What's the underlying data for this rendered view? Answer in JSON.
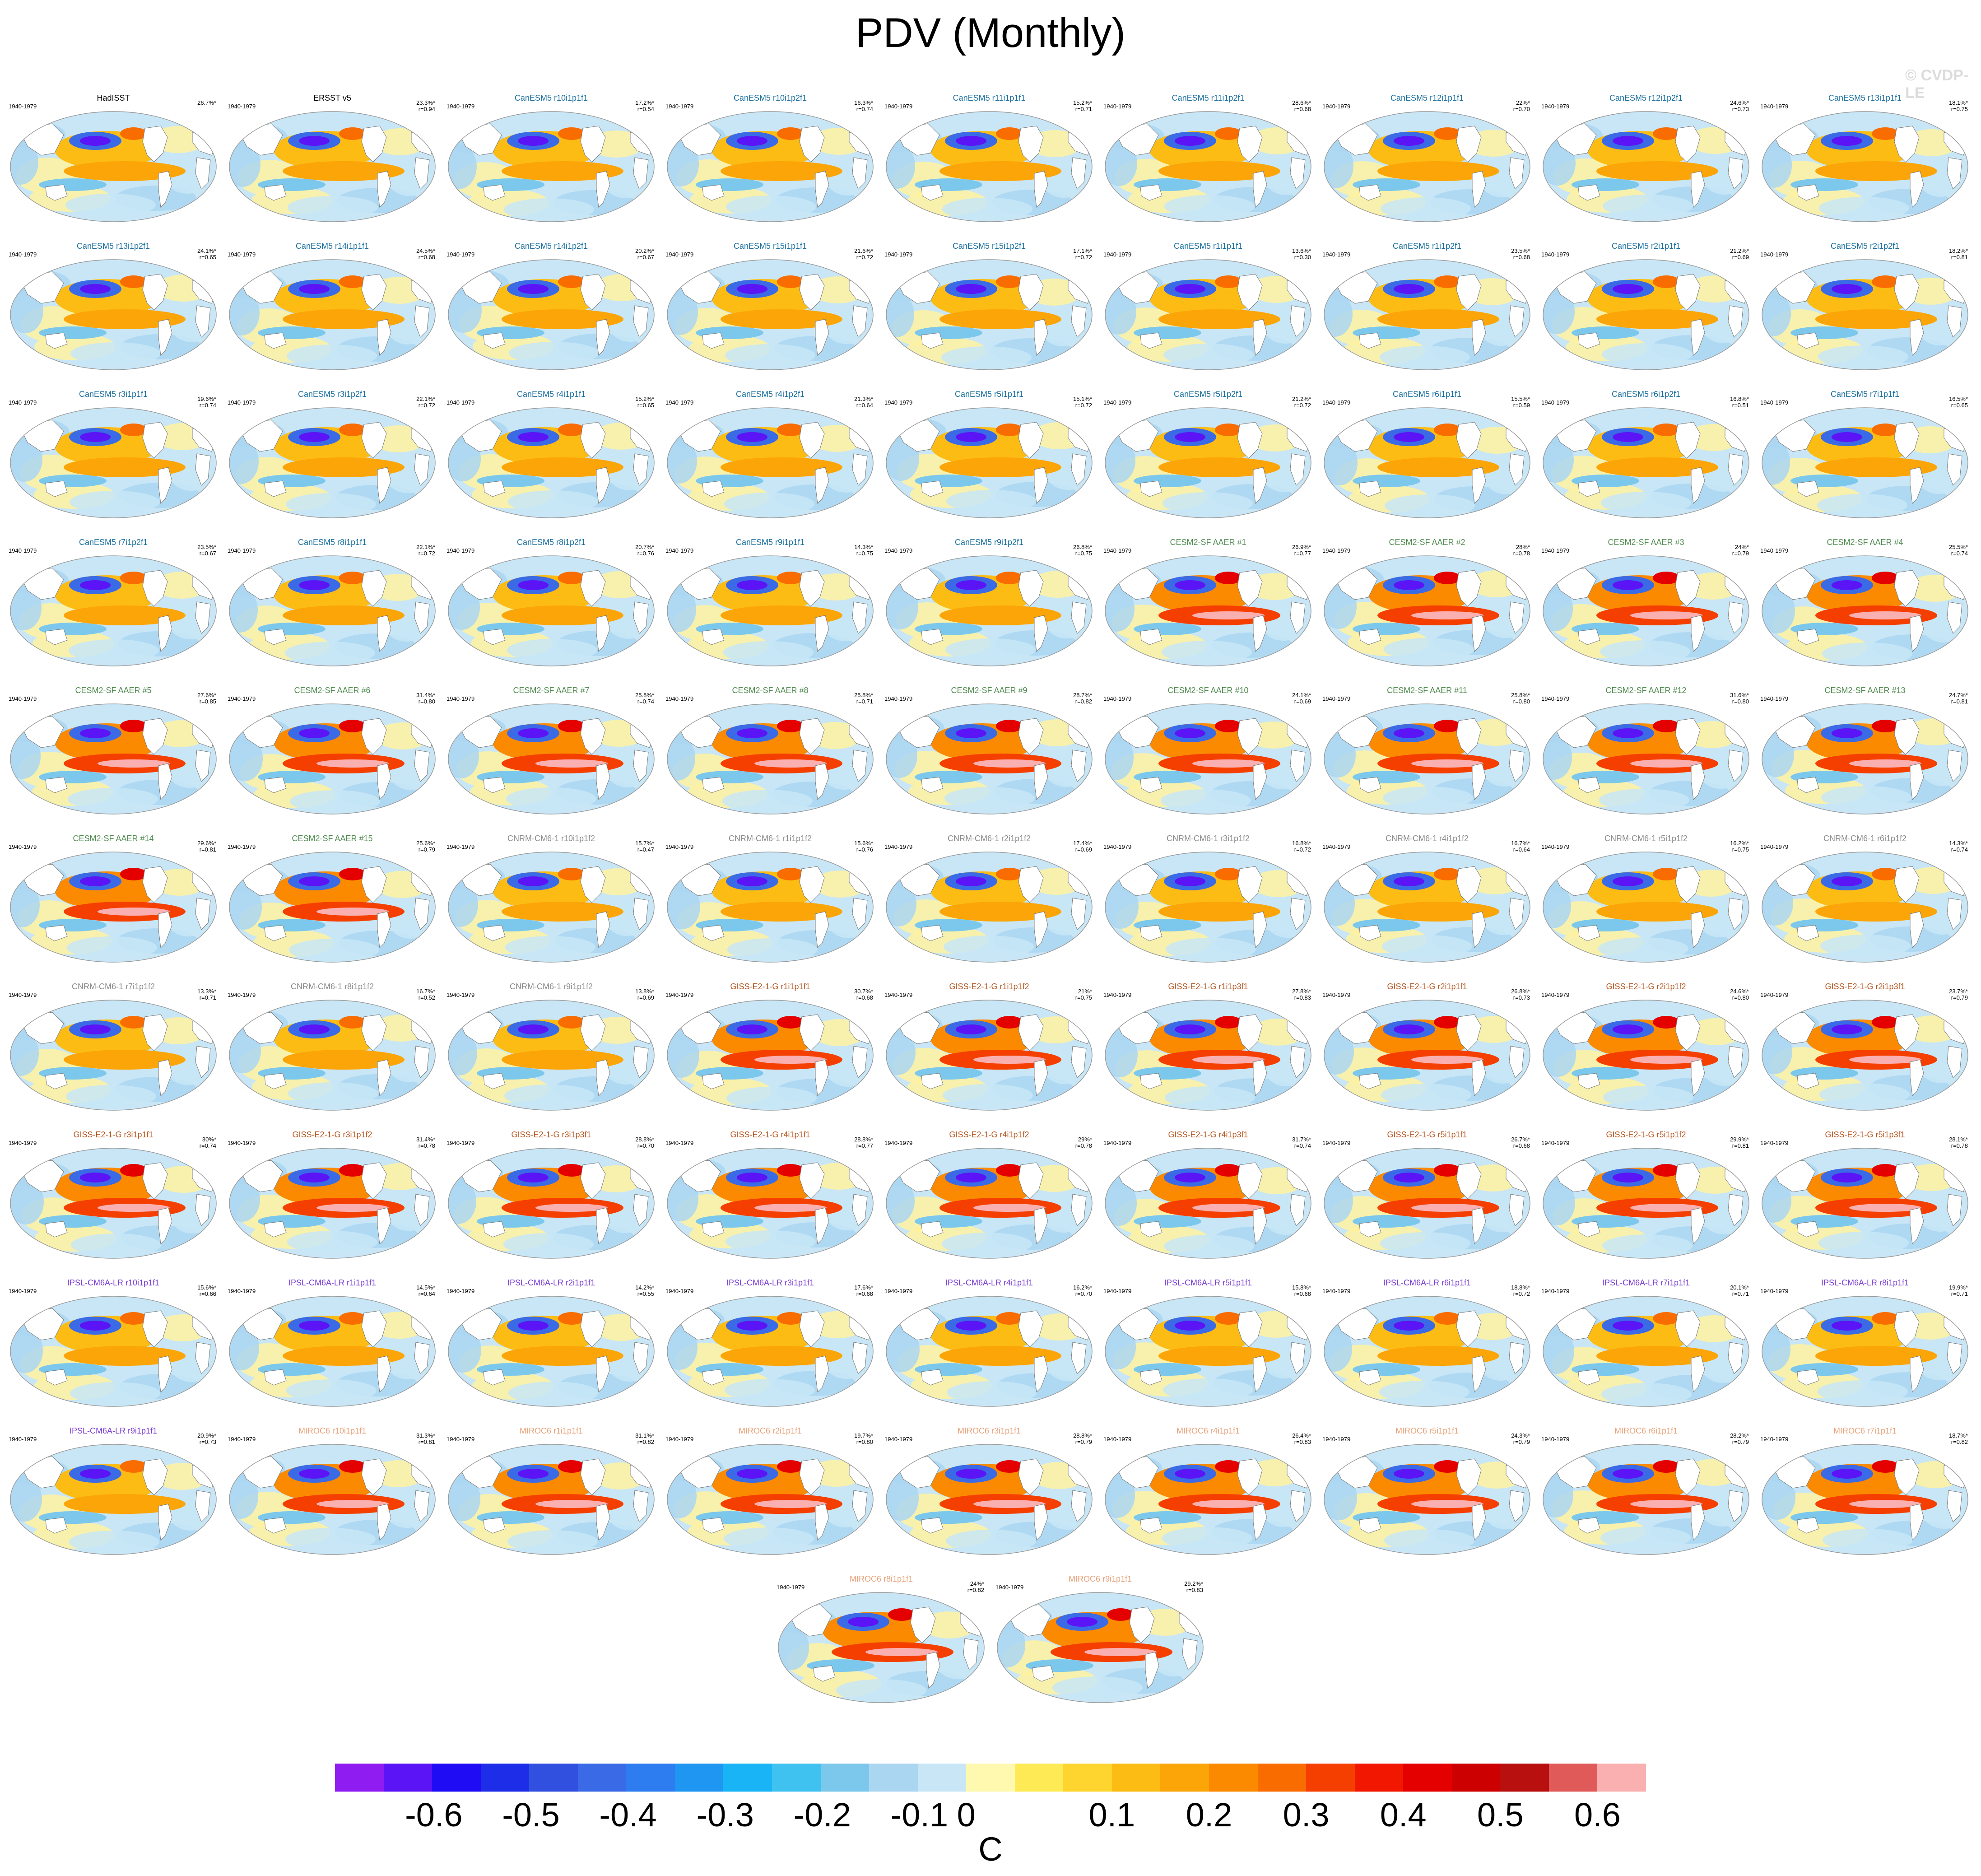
{
  "title": "PDV (Monthly)",
  "watermark": "© CVDP-LE",
  "period": "1940-1979",
  "units": "C",
  "colorbar": {
    "labels": [
      "-0.6",
      "-0.5",
      "-0.4",
      "-0.3",
      "-0.2",
      "-0.1",
      "0",
      "0.1",
      "0.2",
      "0.3",
      "0.4",
      "0.5",
      "0.6"
    ],
    "colors": [
      "#8f1cf0",
      "#5b14f5",
      "#1f0cf5",
      "#1e2ee8",
      "#3150e0",
      "#3a6ae6",
      "#2d7cf0",
      "#1e96f2",
      "#18b4f5",
      "#40c2f0",
      "#7cc8ec",
      "#aad6f2",
      "#c8e6f6",
      "#fff9b0",
      "#fdea55",
      "#fdd52e",
      "#fcbc14",
      "#fca508",
      "#fc8a00",
      "#f96c00",
      "#f53f00",
      "#f21700",
      "#e50000",
      "#cc0000",
      "#b80f0f",
      "#e05a5a",
      "#fab0b0"
    ]
  },
  "group_colors": {
    "obs": "#000000",
    "CanESM5": "#1a6f9e",
    "CESM2-SF AAER": "#4f8a4f",
    "CNRM-CM6-1": "#8a8a8a",
    "GISS-E2-1-G": "#b3541e",
    "IPSL-CM6A-LR": "#7b3fd4",
    "MIROC6": "#e8a27a"
  },
  "panels": [
    {
      "title": "HadISST",
      "group": "obs",
      "pct": "26.7%*",
      "r": ""
    },
    {
      "title": "ERSST v5",
      "group": "obs",
      "pct": "23.3%*",
      "r": "r=0.94"
    },
    {
      "title": "CanESM5 r10i1p1f1",
      "group": "CanESM5",
      "pct": "17.2%*",
      "r": "r=0.54"
    },
    {
      "title": "CanESM5 r10i1p2f1",
      "group": "CanESM5",
      "pct": "16.3%*",
      "r": "r=0.74"
    },
    {
      "title": "CanESM5 r11i1p1f1",
      "group": "CanESM5",
      "pct": "15.2%*",
      "r": "r=0.71"
    },
    {
      "title": "CanESM5 r11i1p2f1",
      "group": "CanESM5",
      "pct": "28.6%*",
      "r": "r=0.68"
    },
    {
      "title": "CanESM5 r12i1p1f1",
      "group": "CanESM5",
      "pct": "22%*",
      "r": "r=0.70"
    },
    {
      "title": "CanESM5 r12i1p2f1",
      "group": "CanESM5",
      "pct": "24.6%*",
      "r": "r=0.73"
    },
    {
      "title": "CanESM5 r13i1p1f1",
      "group": "CanESM5",
      "pct": "18.1%*",
      "r": "r=0.75"
    },
    {
      "title": "CanESM5 r13i1p2f1",
      "group": "CanESM5",
      "pct": "24.1%*",
      "r": "r=0.65"
    },
    {
      "title": "CanESM5 r14i1p1f1",
      "group": "CanESM5",
      "pct": "24.5%*",
      "r": "r=0.68"
    },
    {
      "title": "CanESM5 r14i1p2f1",
      "group": "CanESM5",
      "pct": "20.2%*",
      "r": "r=0.67"
    },
    {
      "title": "CanESM5 r15i1p1f1",
      "group": "CanESM5",
      "pct": "21.6%*",
      "r": "r=0.72"
    },
    {
      "title": "CanESM5 r15i1p2f1",
      "group": "CanESM5",
      "pct": "17.1%*",
      "r": "r=0.72"
    },
    {
      "title": "CanESM5 r1i1p1f1",
      "group": "CanESM5",
      "pct": "13.6%*",
      "r": "r=0.30"
    },
    {
      "title": "CanESM5 r1i1p2f1",
      "group": "CanESM5",
      "pct": "23.5%*",
      "r": "r=0.68"
    },
    {
      "title": "CanESM5 r2i1p1f1",
      "group": "CanESM5",
      "pct": "21.2%*",
      "r": "r=0.69"
    },
    {
      "title": "CanESM5 r2i1p2f1",
      "group": "CanESM5",
      "pct": "18.2%*",
      "r": "r=0.81"
    },
    {
      "title": "CanESM5 r3i1p1f1",
      "group": "CanESM5",
      "pct": "19.6%*",
      "r": "r=0.74"
    },
    {
      "title": "CanESM5 r3i1p2f1",
      "group": "CanESM5",
      "pct": "22.1%*",
      "r": "r=0.72"
    },
    {
      "title": "CanESM5 r4i1p1f1",
      "group": "CanESM5",
      "pct": "15.2%*",
      "r": "r=0.65"
    },
    {
      "title": "CanESM5 r4i1p2f1",
      "group": "CanESM5",
      "pct": "21.3%*",
      "r": "r=0.64"
    },
    {
      "title": "CanESM5 r5i1p1f1",
      "group": "CanESM5",
      "pct": "15.1%*",
      "r": "r=0.72"
    },
    {
      "title": "CanESM5 r5i1p2f1",
      "group": "CanESM5",
      "pct": "21.2%*",
      "r": "r=0.72"
    },
    {
      "title": "CanESM5 r6i1p1f1",
      "group": "CanESM5",
      "pct": "15.5%*",
      "r": "r=0.59"
    },
    {
      "title": "CanESM5 r6i1p2f1",
      "group": "CanESM5",
      "pct": "16.8%*",
      "r": "r=0.51"
    },
    {
      "title": "CanESM5 r7i1p1f1",
      "group": "CanESM5",
      "pct": "16.5%*",
      "r": "r=0.65"
    },
    {
      "title": "CanESM5 r7i1p2f1",
      "group": "CanESM5",
      "pct": "23.5%*",
      "r": "r=0.67"
    },
    {
      "title": "CanESM5 r8i1p1f1",
      "group": "CanESM5",
      "pct": "22.1%*",
      "r": "r=0.72"
    },
    {
      "title": "CanESM5 r8i1p2f1",
      "group": "CanESM5",
      "pct": "20.7%*",
      "r": "r=0.76"
    },
    {
      "title": "CanESM5 r9i1p1f1",
      "group": "CanESM5",
      "pct": "14.3%*",
      "r": "r=0.75"
    },
    {
      "title": "CanESM5 r9i1p2f1",
      "group": "CanESM5",
      "pct": "26.8%*",
      "r": "r=0.75"
    },
    {
      "title": "CESM2-SF AAER #1",
      "group": "CESM2-SF AAER",
      "pct": "26.9%*",
      "r": "r=0.77"
    },
    {
      "title": "CESM2-SF AAER #2",
      "group": "CESM2-SF AAER",
      "pct": "28%*",
      "r": "r=0.78"
    },
    {
      "title": "CESM2-SF AAER #3",
      "group": "CESM2-SF AAER",
      "pct": "24%*",
      "r": "r=0.79"
    },
    {
      "title": "CESM2-SF AAER #4",
      "group": "CESM2-SF AAER",
      "pct": "25.5%*",
      "r": "r=0.74"
    },
    {
      "title": "CESM2-SF AAER #5",
      "group": "CESM2-SF AAER",
      "pct": "27.6%*",
      "r": "r=0.85"
    },
    {
      "title": "CESM2-SF AAER #6",
      "group": "CESM2-SF AAER",
      "pct": "31.4%*",
      "r": "r=0.80"
    },
    {
      "title": "CESM2-SF AAER #7",
      "group": "CESM2-SF AAER",
      "pct": "25.8%*",
      "r": "r=0.74"
    },
    {
      "title": "CESM2-SF AAER #8",
      "group": "CESM2-SF AAER",
      "pct": "25.8%*",
      "r": "r=0.71"
    },
    {
      "title": "CESM2-SF AAER #9",
      "group": "CESM2-SF AAER",
      "pct": "28.7%*",
      "r": "r=0.82"
    },
    {
      "title": "CESM2-SF AAER #10",
      "group": "CESM2-SF AAER",
      "pct": "24.1%*",
      "r": "r=0.69"
    },
    {
      "title": "CESM2-SF AAER #11",
      "group": "CESM2-SF AAER",
      "pct": "25.8%*",
      "r": "r=0.80"
    },
    {
      "title": "CESM2-SF AAER #12",
      "group": "CESM2-SF AAER",
      "pct": "31.6%*",
      "r": "r=0.80"
    },
    {
      "title": "CESM2-SF AAER #13",
      "group": "CESM2-SF AAER",
      "pct": "24.7%*",
      "r": "r=0.81"
    },
    {
      "title": "CESM2-SF AAER #14",
      "group": "CESM2-SF AAER",
      "pct": "29.6%*",
      "r": "r=0.81"
    },
    {
      "title": "CESM2-SF AAER #15",
      "group": "CESM2-SF AAER",
      "pct": "25.6%*",
      "r": "r=0.79"
    },
    {
      "title": "CNRM-CM6-1 r10i1p1f2",
      "group": "CNRM-CM6-1",
      "pct": "15.7%*",
      "r": "r=0.47"
    },
    {
      "title": "CNRM-CM6-1 r1i1p1f2",
      "group": "CNRM-CM6-1",
      "pct": "15.6%*",
      "r": "r=0.76"
    },
    {
      "title": "CNRM-CM6-1 r2i1p1f2",
      "group": "CNRM-CM6-1",
      "pct": "17.4%*",
      "r": "r=0.69"
    },
    {
      "title": "CNRM-CM6-1 r3i1p1f2",
      "group": "CNRM-CM6-1",
      "pct": "16.8%*",
      "r": "r=0.72"
    },
    {
      "title": "CNRM-CM6-1 r4i1p1f2",
      "group": "CNRM-CM6-1",
      "pct": "16.7%*",
      "r": "r=0.64"
    },
    {
      "title": "CNRM-CM6-1 r5i1p1f2",
      "group": "CNRM-CM6-1",
      "pct": "16.2%*",
      "r": "r=0.75"
    },
    {
      "title": "CNRM-CM6-1 r6i1p1f2",
      "group": "CNRM-CM6-1",
      "pct": "14.3%*",
      "r": "r=0.74"
    },
    {
      "title": "CNRM-CM6-1 r7i1p1f2",
      "group": "CNRM-CM6-1",
      "pct": "13.3%*",
      "r": "r=0.71"
    },
    {
      "title": "CNRM-CM6-1 r8i1p1f2",
      "group": "CNRM-CM6-1",
      "pct": "16.7%*",
      "r": "r=0.52"
    },
    {
      "title": "CNRM-CM6-1 r9i1p1f2",
      "group": "CNRM-CM6-1",
      "pct": "13.8%*",
      "r": "r=0.69"
    },
    {
      "title": "GISS-E2-1-G r1i1p1f1",
      "group": "GISS-E2-1-G",
      "pct": "30.7%*",
      "r": "r=0.68"
    },
    {
      "title": "GISS-E2-1-G r1i1p1f2",
      "group": "GISS-E2-1-G",
      "pct": "21%*",
      "r": "r=0.75"
    },
    {
      "title": "GISS-E2-1-G r1i1p3f1",
      "group": "GISS-E2-1-G",
      "pct": "27.8%*",
      "r": "r=0.83"
    },
    {
      "title": "GISS-E2-1-G r2i1p1f1",
      "group": "GISS-E2-1-G",
      "pct": "26.8%*",
      "r": "r=0.73"
    },
    {
      "title": "GISS-E2-1-G r2i1p1f2",
      "group": "GISS-E2-1-G",
      "pct": "24.6%*",
      "r": "r=0.80"
    },
    {
      "title": "GISS-E2-1-G r2i1p3f1",
      "group": "GISS-E2-1-G",
      "pct": "23.7%*",
      "r": "r=0.79"
    },
    {
      "title": "GISS-E2-1-G r3i1p1f1",
      "group": "GISS-E2-1-G",
      "pct": "30%*",
      "r": "r=0.74"
    },
    {
      "title": "GISS-E2-1-G r3i1p1f2",
      "group": "GISS-E2-1-G",
      "pct": "31.4%*",
      "r": "r=0.78"
    },
    {
      "title": "GISS-E2-1-G r3i1p3f1",
      "group": "GISS-E2-1-G",
      "pct": "28.8%*",
      "r": "r=0.70"
    },
    {
      "title": "GISS-E2-1-G r4i1p1f1",
      "group": "GISS-E2-1-G",
      "pct": "28.8%*",
      "r": "r=0.77"
    },
    {
      "title": "GISS-E2-1-G r4i1p1f2",
      "group": "GISS-E2-1-G",
      "pct": "29%*",
      "r": "r=0.78"
    },
    {
      "title": "GISS-E2-1-G r4i1p3f1",
      "group": "GISS-E2-1-G",
      "pct": "31.7%*",
      "r": "r=0.74"
    },
    {
      "title": "GISS-E2-1-G r5i1p1f1",
      "group": "GISS-E2-1-G",
      "pct": "26.7%*",
      "r": "r=0.68"
    },
    {
      "title": "GISS-E2-1-G r5i1p1f2",
      "group": "GISS-E2-1-G",
      "pct": "29.9%*",
      "r": "r=0.81"
    },
    {
      "title": "GISS-E2-1-G r5i1p3f1",
      "group": "GISS-E2-1-G",
      "pct": "28.1%*",
      "r": "r=0.78"
    },
    {
      "title": "IPSL-CM6A-LR r10i1p1f1",
      "group": "IPSL-CM6A-LR",
      "pct": "15.6%*",
      "r": "r=0.66"
    },
    {
      "title": "IPSL-CM6A-LR r1i1p1f1",
      "group": "IPSL-CM6A-LR",
      "pct": "14.5%*",
      "r": "r=0.64"
    },
    {
      "title": "IPSL-CM6A-LR r2i1p1f1",
      "group": "IPSL-CM6A-LR",
      "pct": "14.2%*",
      "r": "r=0.55"
    },
    {
      "title": "IPSL-CM6A-LR r3i1p1f1",
      "group": "IPSL-CM6A-LR",
      "pct": "17.6%*",
      "r": "r=0.68"
    },
    {
      "title": "IPSL-CM6A-LR r4i1p1f1",
      "group": "IPSL-CM6A-LR",
      "pct": "16.2%*",
      "r": "r=0.70"
    },
    {
      "title": "IPSL-CM6A-LR r5i1p1f1",
      "group": "IPSL-CM6A-LR",
      "pct": "15.8%*",
      "r": "r=0.68"
    },
    {
      "title": "IPSL-CM6A-LR r6i1p1f1",
      "group": "IPSL-CM6A-LR",
      "pct": "18.8%*",
      "r": "r=0.72"
    },
    {
      "title": "IPSL-CM6A-LR r7i1p1f1",
      "group": "IPSL-CM6A-LR",
      "pct": "20.1%*",
      "r": "r=0.71"
    },
    {
      "title": "IPSL-CM6A-LR r8i1p1f1",
      "group": "IPSL-CM6A-LR",
      "pct": "19.9%*",
      "r": "r=0.71"
    },
    {
      "title": "IPSL-CM6A-LR r9i1p1f1",
      "group": "IPSL-CM6A-LR",
      "pct": "20.9%*",
      "r": "r=0.73"
    },
    {
      "title": "MIROC6 r10i1p1f1",
      "group": "MIROC6",
      "pct": "31.3%*",
      "r": "r=0.81"
    },
    {
      "title": "MIROC6 r1i1p1f1",
      "group": "MIROC6",
      "pct": "31.1%*",
      "r": "r=0.82"
    },
    {
      "title": "MIROC6 r2i1p1f1",
      "group": "MIROC6",
      "pct": "19.7%*",
      "r": "r=0.80"
    },
    {
      "title": "MIROC6 r3i1p1f1",
      "group": "MIROC6",
      "pct": "28.8%*",
      "r": "r=0.79"
    },
    {
      "title": "MIROC6 r4i1p1f1",
      "group": "MIROC6",
      "pct": "26.4%*",
      "r": "r=0.83"
    },
    {
      "title": "MIROC6 r5i1p1f1",
      "group": "MIROC6",
      "pct": "24.3%*",
      "r": "r=0.79"
    },
    {
      "title": "MIROC6 r6i1p1f1",
      "group": "MIROC6",
      "pct": "28.2%*",
      "r": "r=0.79"
    },
    {
      "title": "MIROC6 r7i1p1f1",
      "group": "MIROC6",
      "pct": "18.7%*",
      "r": "r=0.82"
    },
    {
      "title": "MIROC6 r8i1p1f1",
      "group": "MIROC6",
      "pct": "24%*",
      "r": "r=0.82"
    },
    {
      "title": "MIROC6 r9i1p1f1",
      "group": "MIROC6",
      "pct": "29.2%*",
      "r": "r=0.83"
    }
  ]
}
